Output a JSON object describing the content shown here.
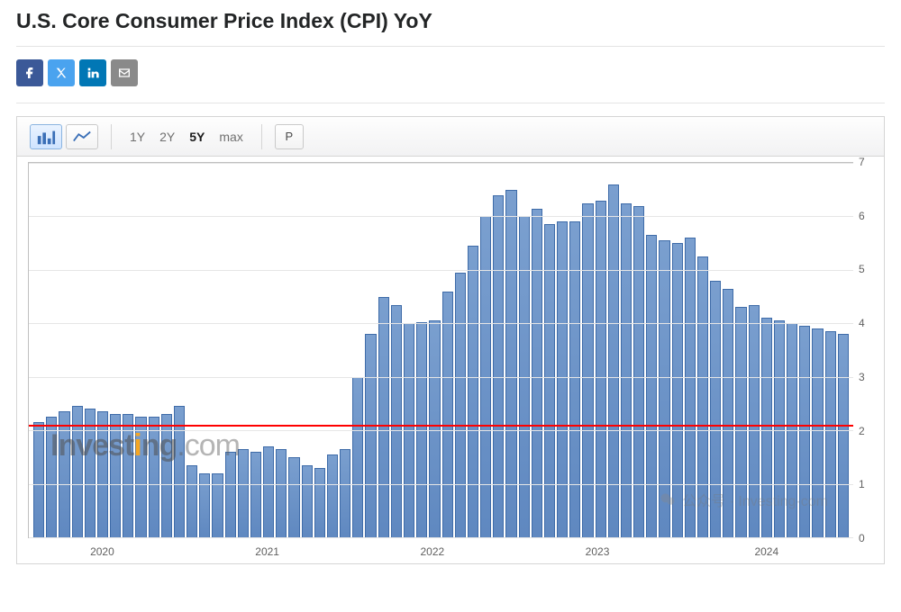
{
  "title": "U.S. Core Consumer Price Index (CPI) YoY",
  "share": {
    "facebook": {
      "name": "facebook-icon",
      "color": "#3b5998"
    },
    "x": {
      "name": "x-icon",
      "color": "#4aa3ef"
    },
    "linkedin": {
      "name": "linkedin-icon",
      "color": "#0177b5"
    },
    "email": {
      "name": "email-icon",
      "color": "#8a8a8a"
    }
  },
  "toolbar": {
    "chart_type_active": "bar",
    "ranges": [
      "1Y",
      "2Y",
      "5Y",
      "max"
    ],
    "range_active": "5Y",
    "print_label": "P"
  },
  "cpi_chart": {
    "type": "bar",
    "ylim": [
      0,
      7
    ],
    "ytick_step": 1,
    "yticks": [
      0,
      1,
      2,
      3,
      4,
      5,
      6,
      7
    ],
    "reference_line": {
      "value": 2.1,
      "color": "#ff0000",
      "width": 2
    },
    "bar_fill_top": "#7a9fcf",
    "bar_fill_bottom": "#5f88c0",
    "bar_border": "#3e6ba8",
    "grid_color": "#e6e6e6",
    "plot_border": "#bfbfbf",
    "background": "#ffffff",
    "tick_fontsize": 12,
    "tick_color": "#606060",
    "x_labels": [
      {
        "label": "2020",
        "position_pct": 9
      },
      {
        "label": "2021",
        "position_pct": 29
      },
      {
        "label": "2022",
        "position_pct": 49
      },
      {
        "label": "2023",
        "position_pct": 69
      },
      {
        "label": "2024",
        "position_pct": 89.5
      }
    ],
    "values": [
      2.15,
      2.25,
      2.35,
      2.45,
      2.4,
      2.35,
      2.3,
      2.3,
      2.25,
      2.25,
      2.3,
      2.45,
      1.35,
      1.2,
      1.2,
      1.6,
      1.65,
      1.6,
      1.7,
      1.65,
      1.5,
      1.35,
      1.3,
      1.55,
      1.65,
      3.0,
      3.8,
      4.5,
      4.35,
      4.0,
      4.02,
      4.05,
      4.6,
      4.95,
      5.45,
      6.0,
      6.4,
      6.5,
      6.0,
      6.15,
      5.85,
      5.9,
      5.9,
      6.25,
      6.3,
      6.6,
      6.25,
      6.2,
      5.65,
      5.55,
      5.5,
      5.6,
      5.25,
      4.8,
      4.65,
      4.3,
      4.35,
      4.1,
      4.05,
      4.0,
      3.95,
      3.9,
      3.85,
      3.8
    ]
  },
  "watermark": {
    "brand": "Invest",
    "brand_i": "i",
    "brand_ng": "ng",
    "dot_com": ".com"
  },
  "watermark_cn": "公众号 · Investing·com"
}
